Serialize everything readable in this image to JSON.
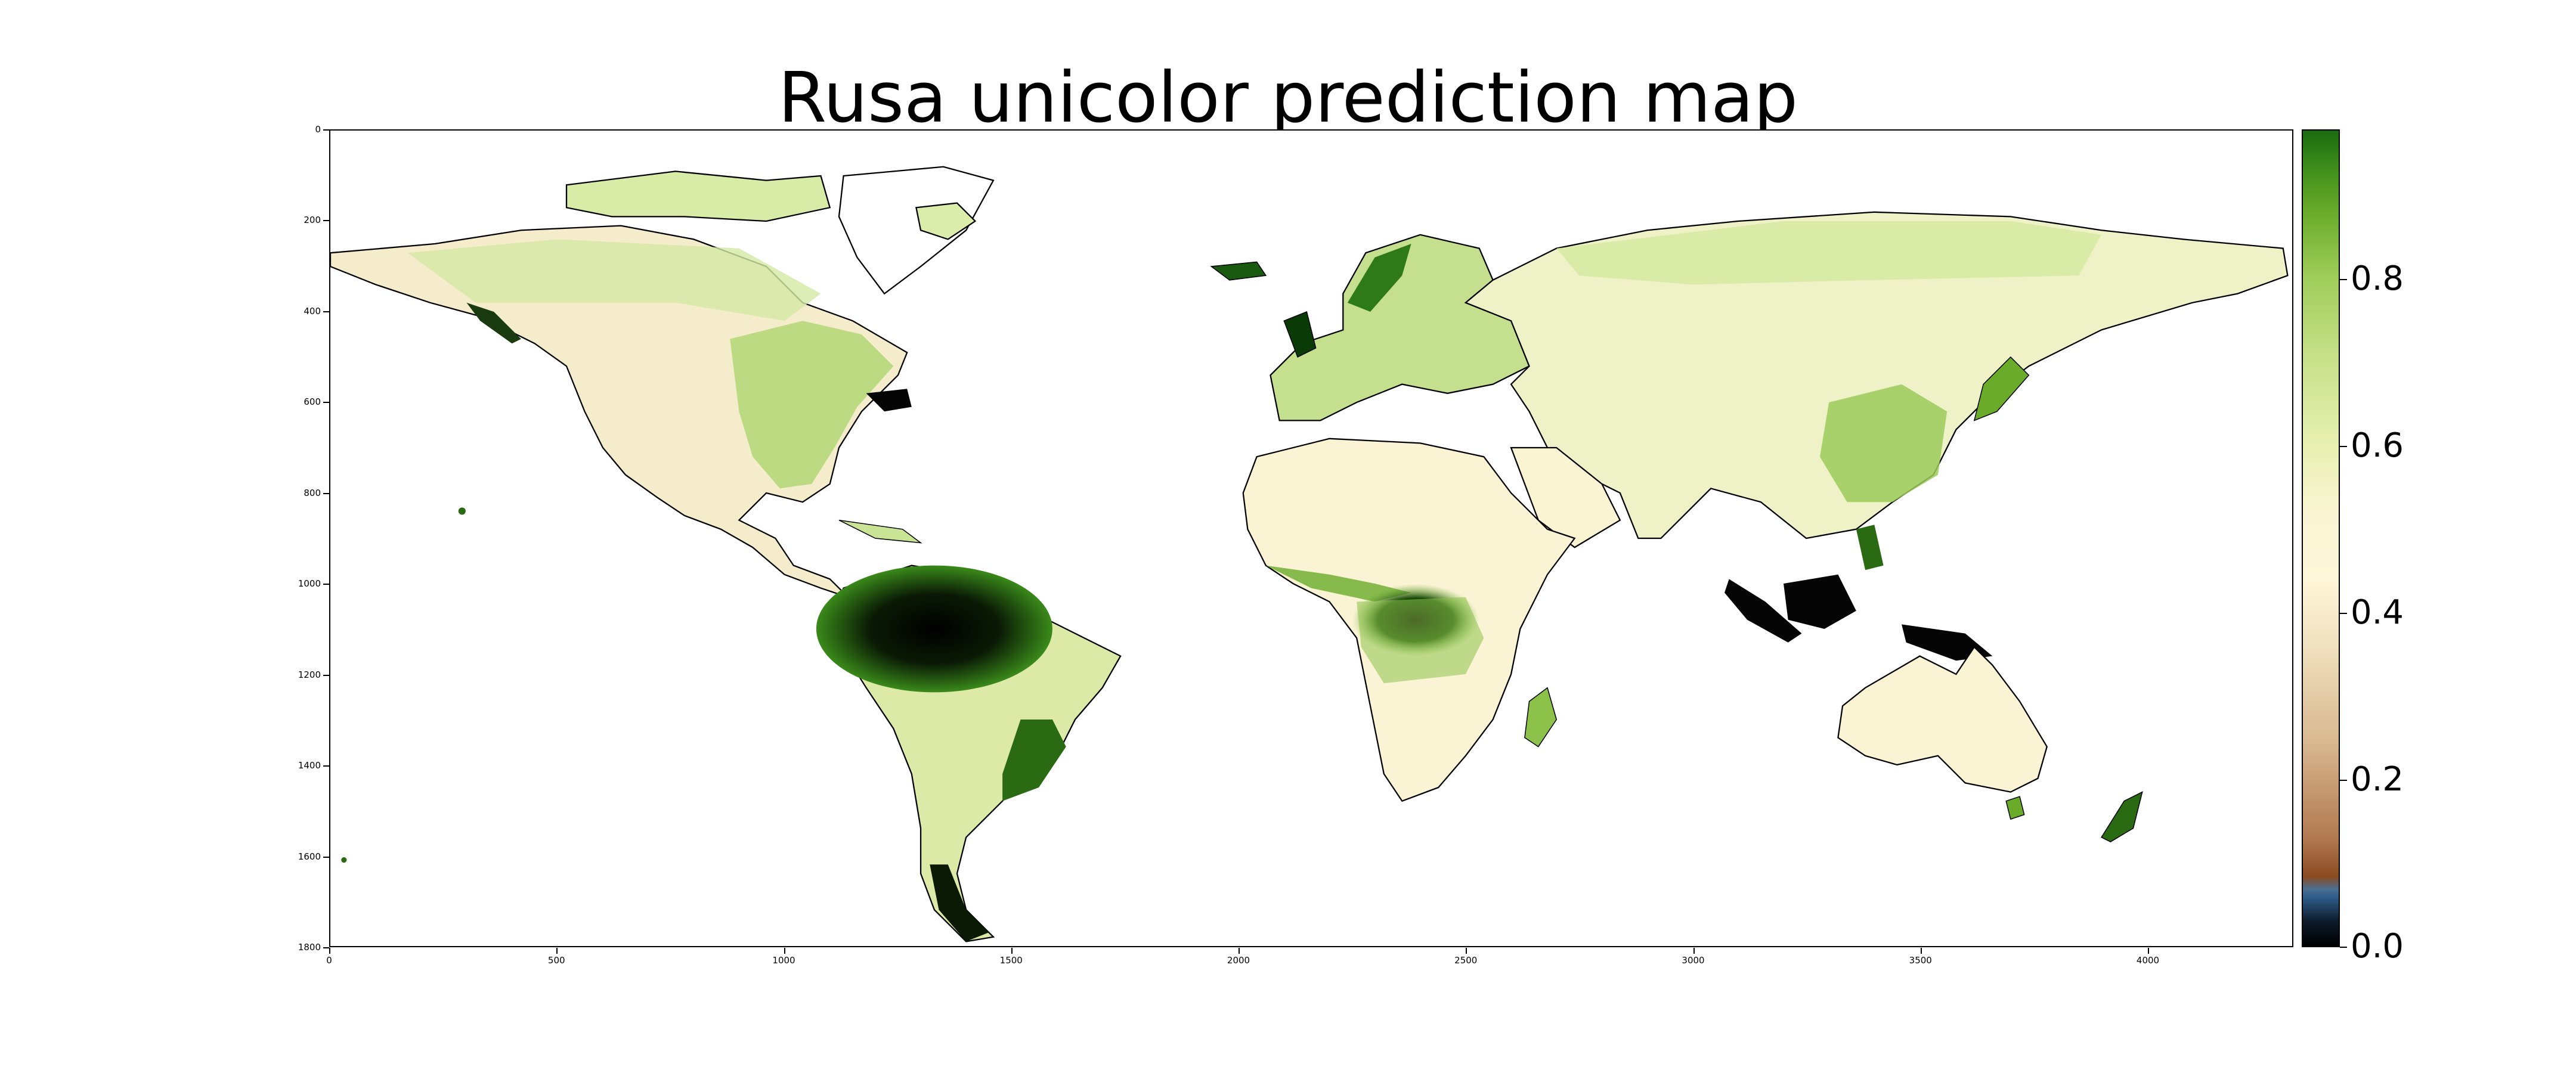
{
  "title": "Rusa unicolor prediction map",
  "x_ticks": [
    "0",
    "500",
    "1000",
    "1500",
    "2000",
    "2500",
    "3000",
    "3500",
    "4000"
  ],
  "y_ticks": [
    "0",
    "200",
    "400",
    "600",
    "800",
    "1000",
    "1200",
    "1400",
    "1600",
    "1800"
  ],
  "colorbar": {
    "ticks": [
      "0.0",
      "0.2",
      "0.4",
      "0.6",
      "0.8"
    ],
    "range": [
      0.0,
      0.98
    ],
    "colors": [
      "#000000",
      "#2f5d8a",
      "#8b4a22",
      "#d8b890",
      "#fff7d9",
      "#c8e08a",
      "#6aab2a",
      "#1a6a10"
    ]
  },
  "map": {
    "land_low_color": "#f7efcf",
    "land_mid_color": "#cfe39a",
    "land_high_color": "#5fa028",
    "hotspot_color": "#050505",
    "coastline_color": "#000000"
  }
}
